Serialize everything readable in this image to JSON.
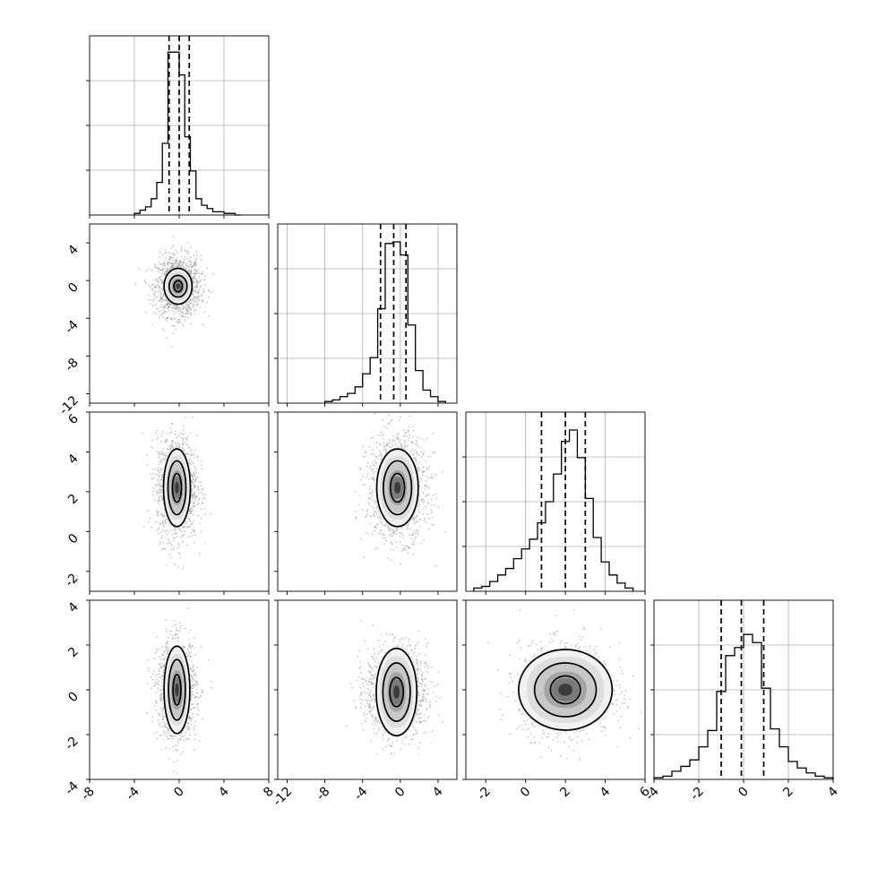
{
  "chart_data": {
    "type": "corner",
    "title": "",
    "parameters": [
      {
        "index": 0,
        "range": [
          -8,
          8
        ],
        "ticks": [
          -8,
          -4,
          0,
          4,
          8
        ],
        "quantiles": [
          -0.9,
          0.0,
          0.9
        ],
        "hist_edges": [
          -4.0,
          -3.5,
          -3.0,
          -2.5,
          -2.0,
          -1.5,
          -1.0,
          -0.5,
          0.0,
          0.5,
          1.0,
          1.5,
          2.0,
          2.5,
          3.0,
          3.5,
          4.0,
          4.5,
          5.0,
          5.5
        ],
        "hist_values": [
          0.01,
          0.03,
          0.05,
          0.1,
          0.2,
          0.44,
          1.0,
          1.0,
          0.86,
          0.48,
          0.27,
          0.1,
          0.06,
          0.04,
          0.02,
          0.02,
          0.01,
          0.01,
          0.0
        ]
      },
      {
        "index": 1,
        "range": [
          -13,
          6
        ],
        "ticks": [
          -12,
          -8,
          -4,
          0,
          4
        ],
        "quantiles": [
          -2.1,
          -0.7,
          0.6
        ],
        "hist_edges": [
          -8.0,
          -7.2,
          -6.4,
          -5.6,
          -4.8,
          -4.0,
          -3.2,
          -2.4,
          -1.6,
          -0.8,
          0.0,
          0.8,
          1.6,
          2.4,
          3.2,
          4.0,
          4.8
        ],
        "hist_values": [
          0.01,
          0.02,
          0.04,
          0.06,
          0.1,
          0.18,
          0.28,
          0.58,
          0.98,
          0.99,
          0.91,
          0.48,
          0.2,
          0.08,
          0.04,
          0.01
        ]
      },
      {
        "index": 2,
        "range": [
          -3,
          6
        ],
        "ticks": [
          -2,
          0,
          2,
          4,
          6
        ],
        "quantiles": [
          0.8,
          2.0,
          3.0
        ],
        "hist_edges": [
          -2.6,
          -2.2,
          -1.8,
          -1.4,
          -1.0,
          -0.6,
          -0.2,
          0.2,
          0.6,
          1.0,
          1.4,
          1.8,
          2.2,
          2.6,
          3.0,
          3.4,
          3.8,
          4.2,
          4.6,
          5.0,
          5.4
        ],
        "hist_values": [
          0.02,
          0.03,
          0.06,
          0.1,
          0.14,
          0.2,
          0.26,
          0.32,
          0.42,
          0.55,
          0.72,
          0.92,
          0.99,
          0.82,
          0.57,
          0.33,
          0.18,
          0.1,
          0.05,
          0.02
        ]
      },
      {
        "index": 3,
        "range": [
          -4,
          4
        ],
        "ticks": [
          -4,
          -2,
          0,
          2,
          4
        ],
        "quantiles": [
          -1.0,
          -0.1,
          0.9
        ],
        "hist_edges": [
          -4.0,
          -3.6,
          -3.2,
          -2.8,
          -2.4,
          -2.0,
          -1.6,
          -1.2,
          -0.8,
          -0.4,
          0.0,
          0.4,
          0.8,
          1.2,
          1.6,
          2.0,
          2.4,
          2.8,
          3.2,
          3.6,
          4.0
        ],
        "hist_values": [
          0.01,
          0.02,
          0.05,
          0.08,
          0.12,
          0.2,
          0.3,
          0.54,
          0.76,
          0.81,
          0.89,
          0.84,
          0.56,
          0.31,
          0.2,
          0.11,
          0.07,
          0.04,
          0.02,
          0.01
        ]
      }
    ],
    "hist_ylim": [
      0,
      1.1
    ],
    "pairs": [
      {
        "x": 0,
        "y": 1,
        "center": [
          -0.1,
          -0.6
        ],
        "sd": [
          1.0,
          1.6
        ],
        "contours": [
          [
            1.25,
            1.9
          ],
          [
            0.8,
            1.15
          ],
          [
            0.38,
            0.6
          ]
        ]
      },
      {
        "x": 0,
        "y": 2,
        "center": [
          -0.2,
          2.2
        ],
        "sd": [
          0.9,
          1.3
        ],
        "contours": [
          [
            1.2,
            1.95
          ],
          [
            0.8,
            1.35
          ],
          [
            0.4,
            0.72
          ]
        ]
      },
      {
        "x": 1,
        "y": 2,
        "center": [
          -0.3,
          2.2
        ],
        "sd": [
          1.6,
          1.3
        ],
        "contours": [
          [
            2.2,
            1.95
          ],
          [
            1.5,
            1.35
          ],
          [
            0.75,
            0.72
          ]
        ]
      },
      {
        "x": 0,
        "y": 3,
        "center": [
          -0.2,
          0.0
        ],
        "sd": [
          0.85,
          1.1
        ],
        "contours": [
          [
            1.15,
            1.95
          ],
          [
            0.75,
            1.35
          ],
          [
            0.35,
            0.68
          ]
        ]
      },
      {
        "x": 1,
        "y": 3,
        "center": [
          -0.4,
          -0.1
        ],
        "sd": [
          1.6,
          1.0
        ],
        "contours": [
          [
            2.15,
            1.95
          ],
          [
            1.45,
            1.3
          ],
          [
            0.72,
            0.65
          ]
        ]
      },
      {
        "x": 2,
        "y": 3,
        "center": [
          2.0,
          0.0
        ],
        "sd": [
          1.15,
          1.0
        ],
        "contours": [
          [
            2.35,
            1.8
          ],
          [
            1.55,
            1.2
          ],
          [
            0.75,
            0.62
          ]
        ]
      }
    ],
    "grid": true,
    "legend": "none"
  }
}
